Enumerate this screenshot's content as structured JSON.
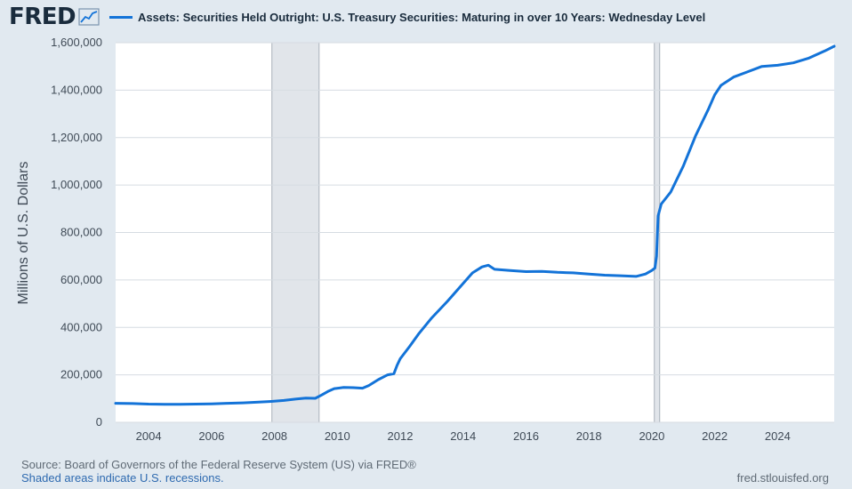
{
  "header": {
    "logo_text": "FRED",
    "legend_label": "Assets: Securities Held Outright: U.S. Treasury Securities: Maturing in over 10 Years: Wednesday Level"
  },
  "colors": {
    "line": "#1373d8",
    "recession": "#e1e5ea",
    "grid": "#d6dce2",
    "background": "#e1e9f0",
    "plot": "#ffffff"
  },
  "footer": {
    "source": "Source: Board of Governors of the Federal Reserve System (US) via FRED®",
    "recessions": "Shaded areas indicate U.S. recessions.",
    "url": "fred.stlouisfed.org"
  },
  "chart_data": {
    "type": "line",
    "title": "Assets: Securities Held Outright: U.S. Treasury Securities: Maturing in over 10 Years: Wednesday Level",
    "xlabel": "",
    "ylabel": "Millions of U.S. Dollars",
    "xlim": [
      2002.95,
      2025.8
    ],
    "ylim": [
      0,
      1600000
    ],
    "x_ticks": [
      "2004",
      "2006",
      "2008",
      "2010",
      "2012",
      "2014",
      "2016",
      "2018",
      "2020",
      "2022",
      "2024"
    ],
    "y_ticks": [
      "0",
      "200,000",
      "400,000",
      "600,000",
      "800,000",
      "1,000,000",
      "1,200,000",
      "1,400,000",
      "1,600,000"
    ],
    "grid": true,
    "legend": "top",
    "recessions": [
      [
        2007.92,
        2009.42
      ],
      [
        2020.08,
        2020.25
      ]
    ],
    "series": [
      {
        "name": "Assets: Securities Held Outright: U.S. Treasury Securities: Maturing in over 10 Years: Wednesday Level",
        "x": [
          2002.95,
          2003.5,
          2004.0,
          2004.5,
          2005.0,
          2005.5,
          2006.0,
          2006.5,
          2007.0,
          2007.5,
          2007.9,
          2008.3,
          2008.7,
          2009.0,
          2009.3,
          2009.5,
          2009.7,
          2009.9,
          2010.2,
          2010.5,
          2010.8,
          2011.0,
          2011.3,
          2011.6,
          2011.8,
          2011.9,
          2012.0,
          2012.3,
          2012.6,
          2013.0,
          2013.5,
          2014.0,
          2014.3,
          2014.6,
          2014.8,
          2015.0,
          2015.5,
          2016.0,
          2016.5,
          2017.0,
          2017.5,
          2018.0,
          2018.5,
          2019.0,
          2019.5,
          2019.8,
          2020.0,
          2020.1,
          2020.15,
          2020.2,
          2020.3,
          2020.6,
          2021.0,
          2021.4,
          2021.8,
          2022.0,
          2022.2,
          2022.6,
          2023.0,
          2023.5,
          2024.0,
          2024.5,
          2025.0,
          2025.5,
          2025.8
        ],
        "values": [
          80000,
          79000,
          77000,
          76000,
          76000,
          77000,
          78000,
          80000,
          82000,
          85000,
          88000,
          92000,
          98000,
          102000,
          101000,
          115000,
          130000,
          142000,
          147000,
          146000,
          144000,
          155000,
          180000,
          200000,
          205000,
          240000,
          268000,
          320000,
          375000,
          440000,
          510000,
          585000,
          630000,
          655000,
          662000,
          645000,
          640000,
          635000,
          636000,
          632000,
          630000,
          625000,
          620000,
          618000,
          615000,
          625000,
          640000,
          650000,
          700000,
          870000,
          920000,
          970000,
          1080000,
          1210000,
          1320000,
          1380000,
          1420000,
          1455000,
          1475000,
          1500000,
          1505000,
          1515000,
          1535000,
          1565000,
          1585000
        ]
      }
    ]
  }
}
